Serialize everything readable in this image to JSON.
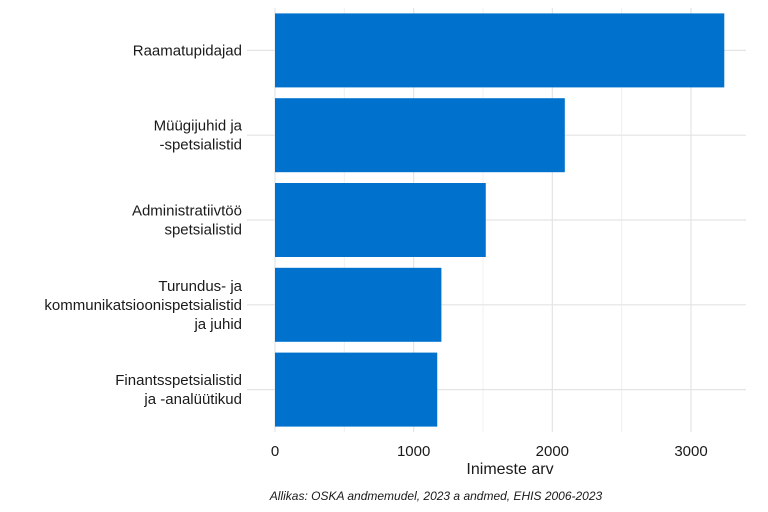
{
  "chart_data": {
    "type": "bar",
    "orientation": "horizontal",
    "categories": [
      [
        "Raamatupidajad"
      ],
      [
        "Müügijuhid ja",
        "-spetsialistid"
      ],
      [
        "Administratiivtöö",
        "spetsialistid"
      ],
      [
        "Turundus- ja",
        "kommunikatsioonispetsialistid",
        "ja juhid"
      ],
      [
        "Finantsspetsialistid",
        "ja -analüütikud"
      ]
    ],
    "values": [
      3240,
      2090,
      1520,
      1200,
      1170
    ],
    "xlabel": "Inimeste arv",
    "ylabel": "",
    "xlim": [
      0,
      3400
    ],
    "xticks": [
      0,
      1000,
      2000,
      3000
    ],
    "grid": true,
    "bar_color": "#0072CE",
    "caption": "Allikas: OSKA andmemudel, 2023 a andmed, EHIS 2006-2023"
  }
}
